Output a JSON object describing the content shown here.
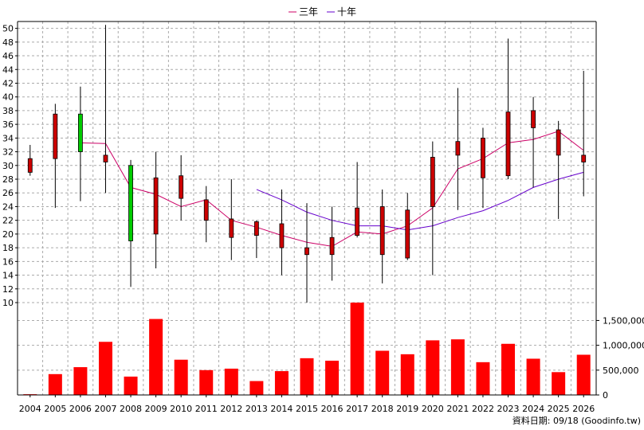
{
  "chart_data": [
    {
      "type": "candlestick",
      "x": [
        "2004",
        "2005",
        "2006",
        "2007",
        "2008",
        "2009",
        "2010",
        "2011",
        "2012",
        "2013",
        "2014",
        "2015",
        "2016",
        "2017",
        "2018",
        "2019",
        "2020",
        "2021",
        "2022",
        "2023",
        "2024",
        "2025",
        "2026"
      ],
      "ohlc": [
        {
          "open": 29.0,
          "high": 33.0,
          "low": 28.5,
          "close": 31.0
        },
        {
          "open": 31.0,
          "high": 39.0,
          "low": 23.8,
          "close": 37.5
        },
        {
          "open": 37.5,
          "high": 41.5,
          "low": 24.8,
          "close": 32.0
        },
        {
          "open": 30.5,
          "high": 50.5,
          "low": 26.0,
          "close": 31.5
        },
        {
          "open": 30.0,
          "high": 30.8,
          "low": 12.3,
          "close": 19.0
        },
        {
          "open": 20.0,
          "high": 32.0,
          "low": 15.0,
          "close": 28.2
        },
        {
          "open": 25.2,
          "high": 31.5,
          "low": 22.0,
          "close": 28.5
        },
        {
          "open": 22.0,
          "high": 27.0,
          "low": 18.8,
          "close": 25.0
        },
        {
          "open": 19.5,
          "high": 28.0,
          "low": 16.2,
          "close": 22.2
        },
        {
          "open": 19.8,
          "high": 22.0,
          "low": 16.5,
          "close": 21.8
        },
        {
          "open": 18.0,
          "high": 26.5,
          "low": 14.0,
          "close": 21.5
        },
        {
          "open": 17.0,
          "high": 24.5,
          "low": 10.0,
          "close": 18.0
        },
        {
          "open": 17.0,
          "high": 24.0,
          "low": 13.2,
          "close": 19.5
        },
        {
          "open": 19.8,
          "high": 30.5,
          "low": 19.5,
          "close": 23.8
        },
        {
          "open": 17.0,
          "high": 26.5,
          "low": 12.8,
          "close": 24.0
        },
        {
          "open": 16.5,
          "high": 26.0,
          "low": 16.2,
          "close": 23.5
        },
        {
          "open": 24.0,
          "high": 33.5,
          "low": 14.0,
          "close": 31.2
        },
        {
          "open": 31.5,
          "high": 41.3,
          "low": 23.5,
          "close": 33.5
        },
        {
          "open": 28.2,
          "high": 35.5,
          "low": 23.8,
          "close": 34.0
        },
        {
          "open": 28.5,
          "high": 48.5,
          "low": 28.0,
          "close": 37.8
        },
        {
          "open": 35.5,
          "high": 40.0,
          "low": 26.8,
          "close": 38.0
        },
        {
          "open": 31.5,
          "high": 36.5,
          "low": 22.2,
          "close": 35.2
        },
        {
          "open": 30.5,
          "high": 43.8,
          "low": 25.5,
          "close": 31.5
        }
      ],
      "series": [
        {
          "name": "三年",
          "color": "#cc0066",
          "values": [
            null,
            null,
            33.3,
            33.2,
            26.8,
            25.8,
            24.0,
            25.0,
            22.0,
            21.0,
            19.8,
            18.8,
            18.2,
            20.3,
            20.0,
            21.2,
            23.8,
            29.5,
            31.0,
            33.3,
            33.8,
            35.0,
            32.2
          ]
        },
        {
          "name": "十年",
          "color": "#6600cc",
          "values": [
            null,
            null,
            null,
            null,
            null,
            null,
            null,
            null,
            null,
            26.5,
            25.0,
            23.2,
            22.0,
            21.2,
            21.2,
            20.6,
            21.2,
            22.4,
            23.4,
            24.9,
            26.8,
            28.0,
            29.0
          ]
        }
      ],
      "y_axis": {
        "min": 10,
        "max": 51,
        "ticks": [
          10,
          12,
          14,
          16,
          18,
          20,
          22,
          24,
          26,
          28,
          30,
          32,
          34,
          36,
          38,
          40,
          42,
          44,
          46,
          48,
          50
        ]
      },
      "grid": true,
      "legend": "top-center",
      "colors": {
        "up": "#cc0000",
        "down": "#00cc00",
        "outline": "#000000"
      }
    },
    {
      "type": "bar",
      "categories": [
        "2004",
        "2005",
        "2006",
        "2007",
        "2008",
        "2009",
        "2010",
        "2011",
        "2012",
        "2013",
        "2014",
        "2015",
        "2016",
        "2017",
        "2018",
        "2019",
        "2020",
        "2021",
        "2022",
        "2023",
        "2024",
        "2025",
        "2026"
      ],
      "values": [
        15000,
        420000,
        560000,
        1070000,
        370000,
        1530000,
        710000,
        500000,
        530000,
        280000,
        480000,
        740000,
        690000,
        1860000,
        890000,
        820000,
        1100000,
        1120000,
        660000,
        1030000,
        730000,
        460000,
        810000
      ],
      "y_axis": {
        "min": 0,
        "max": 1860000,
        "ticks": [
          0,
          500000,
          1000000,
          1500000
        ],
        "tick_labels": [
          "0",
          "500,000",
          "1,000,000",
          "1,500,000"
        ]
      },
      "color": "#ff0000"
    }
  ],
  "footer_note": "資料日期: 09/18  (Goodinfo.tw)"
}
